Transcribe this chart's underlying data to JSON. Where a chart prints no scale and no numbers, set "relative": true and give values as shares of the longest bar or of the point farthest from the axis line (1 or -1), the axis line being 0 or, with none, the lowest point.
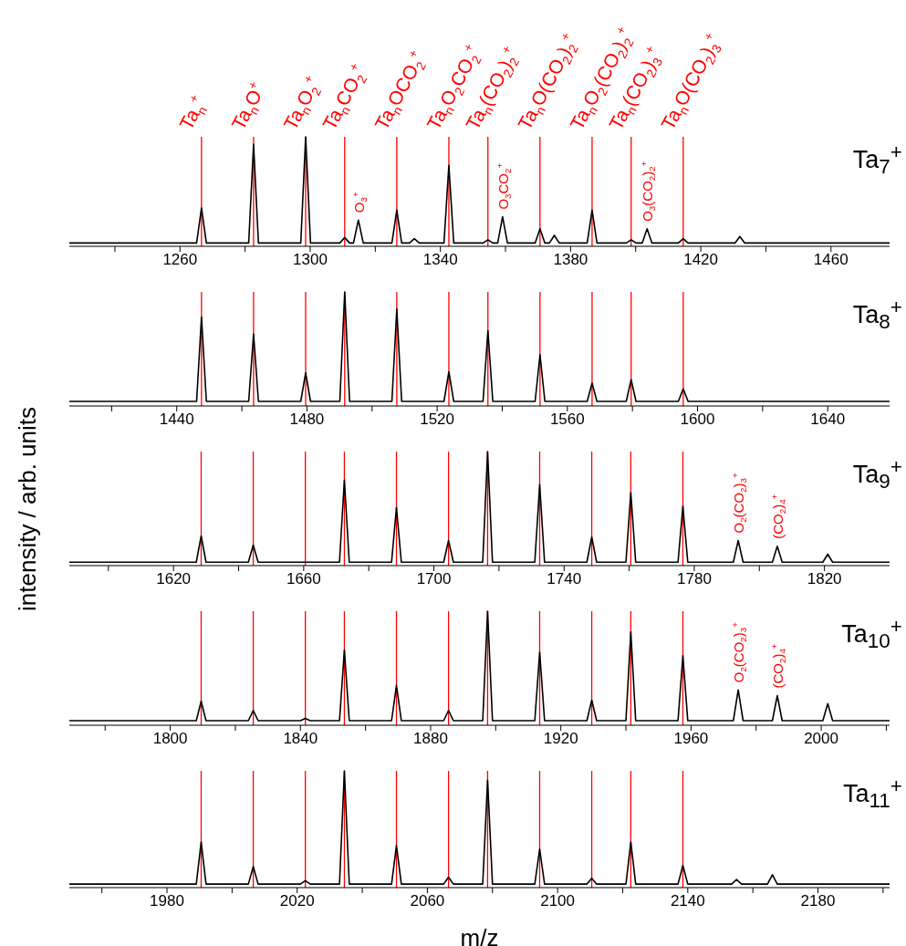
{
  "chart_data": [
    {
      "type": "line",
      "title": "Ta$_{7}$$^{+}$",
      "relative": true,
      "xlim": [
        1226,
        1478
      ],
      "xticks": [
        {
          "value": 1240,
          "label": null
        },
        1260,
        {
          "value": 1280,
          "label": null
        },
        1300,
        {
          "value": 1320,
          "label": null
        },
        1340,
        {
          "value": 1360,
          "label": null
        },
        1380,
        {
          "value": 1400,
          "label": null
        },
        1420,
        {
          "value": 1440,
          "label": null
        },
        1460
      ],
      "x": [
        1226,
        1265.1,
        1266.6,
        1268.1,
        1281.1,
        1282.6,
        1284.1,
        1297.1,
        1298.6,
        1300.1,
        1309.1,
        1310.6,
        1312.1,
        1313.3,
        1314.8,
        1316.3,
        1325.1,
        1326.6,
        1328.1,
        1330.5,
        1332,
        1333.5,
        1341.1,
        1342.6,
        1344.1,
        1353.1,
        1354.6,
        1356.1,
        1357.6,
        1359.1,
        1360.6,
        1369.1,
        1370.6,
        1372.1,
        1373.5,
        1375,
        1376.5,
        1385.1,
        1386.6,
        1388.1,
        1397.1,
        1398.6,
        1400.1,
        1402,
        1403.5,
        1405,
        1413.1,
        1414.6,
        1416.1,
        1430.5,
        1432,
        1433.5,
        1478
      ],
      "series": [
        {
          "color": "#000000",
          "values": [
            0.03,
            0.03,
            0.35,
            0.03,
            0.03,
            0.93,
            0.03,
            0.03,
            1,
            0.03,
            0.03,
            0.08,
            0.03,
            0.03,
            0.24,
            0.03,
            0.03,
            0.33,
            0.03,
            0.03,
            0.07,
            0.03,
            0.03,
            0.74,
            0.03,
            0.03,
            0.06,
            0.03,
            0.03,
            0.27,
            0.03,
            0.03,
            0.16,
            0.03,
            0.03,
            0.1,
            0.03,
            0.03,
            0.33,
            0.03,
            0.03,
            0.06,
            0.03,
            0.03,
            0.16,
            0.03,
            0.03,
            0.07,
            0.03,
            0.03,
            0.09,
            0.03,
            0.03
          ]
        }
      ],
      "ref_lines": [
        {
          "axis": "x",
          "value": 1266.6,
          "label": "Ta$_{n}$$^{+}$",
          "color": "#ff0000"
        },
        {
          "axis": "x",
          "value": 1282.6,
          "label": "Ta$_{n}$O$^{+}$",
          "color": "#ff0000"
        },
        {
          "axis": "x",
          "value": 1298.6,
          "label": "Ta$_{n}$O$_{2}$$^{+}$",
          "color": "#ff0000"
        },
        {
          "axis": "x",
          "value": 1310.6,
          "label": "Ta$_{n}$CO$_{2}$$^{+}$",
          "color": "#ff0000"
        },
        {
          "axis": "x",
          "value": 1326.6,
          "label": "Ta$_{n}$OCO$_{2}$$^{+}$",
          "color": "#ff0000"
        },
        {
          "axis": "x",
          "value": 1342.6,
          "label": "Ta$_{n}$O$_{2}$CO$_{2}$$^{+}$",
          "color": "#ff0000"
        },
        {
          "axis": "x",
          "value": 1354.6,
          "label": "Ta$_{n}$(CO$_{2}$)$_{2}$$^{+}$",
          "color": "#ff0000"
        },
        {
          "axis": "x",
          "value": 1370.6,
          "label": "Ta$_{n}$O(CO$_{2}$)$_{2}$$^{+}$",
          "color": "#ff0000"
        },
        {
          "axis": "x",
          "value": 1386.6,
          "label": "Ta$_{n}$O$_{2}$(CO$_{2}$)$_{2}$$^{+}$",
          "color": "#ff0000"
        },
        {
          "axis": "x",
          "value": 1398.6,
          "label": "Ta$_{n}$(CO$_{2}$)$_{3}$$^{+}$",
          "color": "#ff0000"
        },
        {
          "axis": "x",
          "value": 1414.6,
          "label": "Ta$_{n}$O(CO$_{2}$)$_{3}$$^{+}$",
          "color": "#ff0000"
        }
      ],
      "annotations": [
        {
          "text": "O$_{3}$$^{+}$",
          "x": 1314.8,
          "y": 0.24
        },
        {
          "text": "O$_{3}$CO$_{2}$$^{+}$",
          "x": 1359.1,
          "y": 0.27
        },
        {
          "text": "O$_{3}$(CO$_{2}$)$_{2}$$^{+}$",
          "x": 1403.5,
          "y": 0.16
        }
      ]
    },
    {
      "type": "line",
      "title": "Ta$_{8}$$^{+}$",
      "relative": true,
      "xlim": [
        1407,
        1659
      ],
      "xticks": [
        {
          "value": 1420,
          "label": null
        },
        1440,
        {
          "value": 1460,
          "label": null
        },
        1480,
        {
          "value": 1500,
          "label": null
        },
        1520,
        {
          "value": 1540,
          "label": null
        },
        1560,
        {
          "value": 1580,
          "label": null
        },
        1600,
        {
          "value": 1620,
          "label": null
        },
        1640
      ],
      "x": [
        1407,
        1446.1,
        1447.6,
        1449.1,
        1462.1,
        1463.6,
        1465.1,
        1478.1,
        1479.6,
        1481.1,
        1490.1,
        1491.6,
        1493.1,
        1506.1,
        1507.6,
        1509.1,
        1522.1,
        1523.6,
        1525.1,
        1534.1,
        1535.6,
        1537.1,
        1550.1,
        1551.6,
        1553.1,
        1566.1,
        1567.6,
        1569.1,
        1578.1,
        1579.6,
        1581.1,
        1594.1,
        1595.6,
        1597.1,
        1659
      ],
      "series": [
        {
          "color": "#000000",
          "values": [
            0.04,
            0.04,
            0.78,
            0.04,
            0.04,
            0.63,
            0.04,
            0.04,
            0.29,
            0.04,
            0.04,
            1,
            0.04,
            0.04,
            0.85,
            0.04,
            0.04,
            0.3,
            0.04,
            0.04,
            0.66,
            0.04,
            0.04,
            0.45,
            0.04,
            0.04,
            0.2,
            0.04,
            0.04,
            0.23,
            0.04,
            0.04,
            0.15,
            0.04,
            0.04
          ]
        }
      ],
      "ref_lines": [
        {
          "axis": "x",
          "value": 1447.6,
          "color": "#ff0000"
        },
        {
          "axis": "x",
          "value": 1463.6,
          "color": "#ff0000"
        },
        {
          "axis": "x",
          "value": 1479.6,
          "color": "#ff0000"
        },
        {
          "axis": "x",
          "value": 1491.6,
          "color": "#ff0000"
        },
        {
          "axis": "x",
          "value": 1507.6,
          "color": "#ff0000"
        },
        {
          "axis": "x",
          "value": 1523.6,
          "color": "#ff0000"
        },
        {
          "axis": "x",
          "value": 1535.6,
          "color": "#ff0000"
        },
        {
          "axis": "x",
          "value": 1551.6,
          "color": "#ff0000"
        },
        {
          "axis": "x",
          "value": 1567.6,
          "color": "#ff0000"
        },
        {
          "axis": "x",
          "value": 1579.6,
          "color": "#ff0000"
        },
        {
          "axis": "x",
          "value": 1595.6,
          "color": "#ff0000"
        }
      ]
    },
    {
      "type": "line",
      "title": "Ta$_{9}$$^{+}$",
      "ylabel": "intensity / arb. units",
      "relative": true,
      "xlim": [
        1588,
        1840
      ],
      "xticks": [
        {
          "value": 1600,
          "label": null
        },
        1620,
        {
          "value": 1640,
          "label": null
        },
        1660,
        {
          "value": 1680,
          "label": null
        },
        1700,
        {
          "value": 1720,
          "label": null
        },
        1740,
        {
          "value": 1760,
          "label": null
        },
        1780,
        {
          "value": 1800,
          "label": null
        },
        1820
      ],
      "x": [
        1588,
        1627,
        1628.5,
        1630,
        1643,
        1644.5,
        1646,
        1671,
        1672.5,
        1674,
        1687,
        1688.5,
        1690,
        1703,
        1704.5,
        1706,
        1715,
        1716.5,
        1718,
        1731,
        1732.5,
        1734,
        1747,
        1748.5,
        1750,
        1759,
        1760.5,
        1762,
        1775,
        1776.5,
        1778,
        1792,
        1793.5,
        1795,
        1804,
        1805.5,
        1807,
        1819.5,
        1821,
        1822.5,
        1840
      ],
      "series": [
        {
          "color": "#000000",
          "values": [
            0.03,
            0.03,
            0.26,
            0.03,
            0.03,
            0.18,
            0.03,
            0.03,
            0.75,
            0.03,
            0.03,
            0.51,
            0.03,
            0.03,
            0.22,
            0.03,
            0.03,
            1,
            0.03,
            0.03,
            0.71,
            0.03,
            0.03,
            0.25,
            0.03,
            0.03,
            0.64,
            0.03,
            0.03,
            0.52,
            0.03,
            0.03,
            0.22,
            0.03,
            0.03,
            0.17,
            0.03,
            0.03,
            0.1,
            0.03,
            0.03
          ]
        }
      ],
      "ref_lines": [
        {
          "axis": "x",
          "value": 1628.5,
          "color": "#ff0000"
        },
        {
          "axis": "x",
          "value": 1644.5,
          "color": "#ff0000"
        },
        {
          "axis": "x",
          "value": 1660.5,
          "color": "#ff0000"
        },
        {
          "axis": "x",
          "value": 1672.5,
          "color": "#ff0000"
        },
        {
          "axis": "x",
          "value": 1688.5,
          "color": "#ff0000"
        },
        {
          "axis": "x",
          "value": 1704.5,
          "color": "#ff0000"
        },
        {
          "axis": "x",
          "value": 1716.5,
          "color": "#ff0000"
        },
        {
          "axis": "x",
          "value": 1732.5,
          "color": "#ff0000"
        },
        {
          "axis": "x",
          "value": 1748.5,
          "color": "#ff0000"
        },
        {
          "axis": "x",
          "value": 1760.5,
          "color": "#ff0000"
        },
        {
          "axis": "x",
          "value": 1776.5,
          "color": "#ff0000"
        }
      ],
      "annotations": [
        {
          "text": "O$_{2}$(CO$_{2}$)$_{3}$$^{+}$",
          "x": 1793.5,
          "y": 0.22
        },
        {
          "text": "(CO$_{2}$)$_{4}$$^{+}$",
          "x": 1805.5,
          "y": 0.17
        }
      ]
    },
    {
      "type": "line",
      "title": "Ta$_{10}$$^{+}$",
      "relative": true,
      "xlim": [
        1769,
        2021
      ],
      "xticks": [
        {
          "value": 1780,
          "label": null
        },
        1800,
        {
          "value": 1820,
          "label": null
        },
        1840,
        {
          "value": 1860,
          "label": null
        },
        1880,
        {
          "value": 1900,
          "label": null
        },
        1920,
        {
          "value": 1940,
          "label": null
        },
        1960,
        {
          "value": 1980,
          "label": null
        },
        2000,
        {
          "value": 2020,
          "label": null
        }
      ],
      "x": [
        1769,
        1808,
        1809.5,
        1811,
        1824,
        1825.5,
        1827,
        1840,
        1841.5,
        1843,
        1852,
        1853.5,
        1855,
        1868,
        1869.5,
        1871,
        1884,
        1885.5,
        1887,
        1896,
        1897.5,
        1899,
        1912,
        1913.5,
        1915,
        1928,
        1929.5,
        1931,
        1940,
        1941.5,
        1943,
        1956,
        1957.5,
        1959,
        1973,
        1974.5,
        1976,
        1985,
        1986.5,
        1988,
        2000.5,
        2002,
        2003.5,
        2021
      ],
      "series": [
        {
          "color": "#000000",
          "values": [
            0.04,
            0.04,
            0.21,
            0.04,
            0.04,
            0.13,
            0.04,
            0.04,
            0.06,
            0.04,
            0.04,
            0.66,
            0.04,
            0.04,
            0.35,
            0.04,
            0.04,
            0.13,
            0.04,
            0.04,
            1,
            0.04,
            0.04,
            0.64,
            0.04,
            0.04,
            0.22,
            0.04,
            0.04,
            0.82,
            0.04,
            0.04,
            0.61,
            0.04,
            0.04,
            0.31,
            0.04,
            0.04,
            0.26,
            0.04,
            0.04,
            0.19,
            0.04,
            0.04
          ]
        }
      ],
      "ref_lines": [
        {
          "axis": "x",
          "value": 1809.5,
          "color": "#ff0000"
        },
        {
          "axis": "x",
          "value": 1825.5,
          "color": "#ff0000"
        },
        {
          "axis": "x",
          "value": 1841.5,
          "color": "#ff0000"
        },
        {
          "axis": "x",
          "value": 1853.5,
          "color": "#ff0000"
        },
        {
          "axis": "x",
          "value": 1869.5,
          "color": "#ff0000"
        },
        {
          "axis": "x",
          "value": 1885.5,
          "color": "#ff0000"
        },
        {
          "axis": "x",
          "value": 1897.5,
          "color": "#ff0000"
        },
        {
          "axis": "x",
          "value": 1913.5,
          "color": "#ff0000"
        },
        {
          "axis": "x",
          "value": 1929.5,
          "color": "#ff0000"
        },
        {
          "axis": "x",
          "value": 1941.5,
          "color": "#ff0000"
        },
        {
          "axis": "x",
          "value": 1957.5,
          "color": "#ff0000"
        }
      ],
      "annotations": [
        {
          "text": "O$_{2}$(CO$_{2}$)$_{3}$$^{+}$",
          "x": 1974.5,
          "y": 0.31
        },
        {
          "text": "(CO$_{2}$)$_{4}$$^{+}$",
          "x": 1986.5,
          "y": 0.26
        }
      ]
    },
    {
      "type": "line",
      "title": "Ta$_{11}$$^{+}$",
      "xlabel": "m/z",
      "relative": true,
      "xlim": [
        1950,
        2202
      ],
      "xticks": [
        {
          "value": 1960,
          "label": null
        },
        1980,
        {
          "value": 2000,
          "label": null
        },
        2020,
        {
          "value": 2040,
          "label": null
        },
        2060,
        {
          "value": 2080,
          "label": null
        },
        2100,
        {
          "value": 2120,
          "label": null
        },
        2140,
        {
          "value": 2160,
          "label": null
        },
        2180,
        {
          "value": 2200,
          "label": null
        }
      ],
      "x": [
        1950,
        1989,
        1990.5,
        1992,
        2005,
        2006.5,
        2008,
        2021,
        2022.5,
        2024,
        2033,
        2034.5,
        2036,
        2049,
        2050.5,
        2052,
        2065,
        2066.5,
        2068,
        2077,
        2078.5,
        2080,
        2093,
        2094.5,
        2096,
        2109,
        2110.5,
        2112,
        2121,
        2122.5,
        2124,
        2137,
        2138.5,
        2140,
        2153.5,
        2155,
        2156.5,
        2164.5,
        2166,
        2167.5,
        2202
      ],
      "series": [
        {
          "color": "#000000",
          "values": [
            0.03,
            0.03,
            0.39,
            0.03,
            0.03,
            0.18,
            0.03,
            0.03,
            0.06,
            0.03,
            0.03,
            1,
            0.03,
            0.03,
            0.36,
            0.03,
            0.03,
            0.09,
            0.03,
            0.03,
            0.92,
            0.03,
            0.03,
            0.33,
            0.03,
            0.03,
            0.08,
            0.03,
            0.03,
            0.39,
            0.03,
            0.03,
            0.19,
            0.03,
            0.03,
            0.07,
            0.03,
            0.03,
            0.11,
            0.03,
            0.03
          ]
        }
      ],
      "ref_lines": [
        {
          "axis": "x",
          "value": 1990.5,
          "color": "#ff0000"
        },
        {
          "axis": "x",
          "value": 2006.5,
          "color": "#ff0000"
        },
        {
          "axis": "x",
          "value": 2022.5,
          "color": "#ff0000"
        },
        {
          "axis": "x",
          "value": 2034.5,
          "color": "#ff0000"
        },
        {
          "axis": "x",
          "value": 2050.5,
          "color": "#ff0000"
        },
        {
          "axis": "x",
          "value": 2066.5,
          "color": "#ff0000"
        },
        {
          "axis": "x",
          "value": 2078.5,
          "color": "#ff0000"
        },
        {
          "axis": "x",
          "value": 2094.5,
          "color": "#ff0000"
        },
        {
          "axis": "x",
          "value": 2110.5,
          "color": "#ff0000"
        },
        {
          "axis": "x",
          "value": 2122.5,
          "color": "#ff0000"
        },
        {
          "axis": "x",
          "value": 2138.5,
          "color": "#ff0000"
        }
      ]
    }
  ]
}
